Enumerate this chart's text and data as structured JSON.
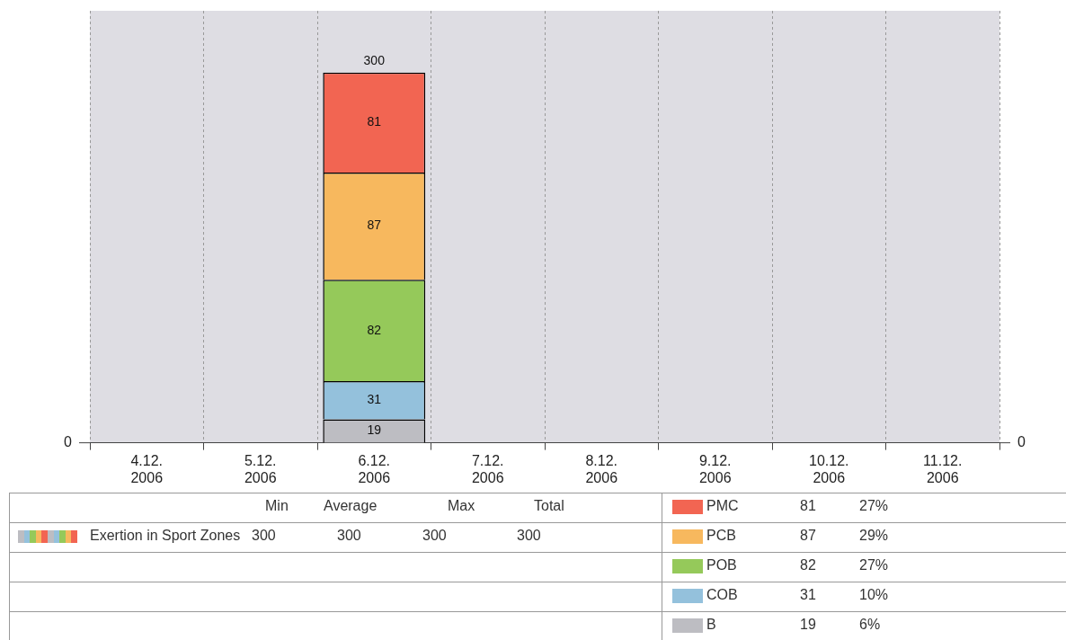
{
  "chart_data": {
    "type": "bar",
    "stacked": true,
    "categories": [
      "4.12. 2006",
      "5.12. 2006",
      "6.12. 2006",
      "7.12. 2006",
      "8.12. 2006",
      "9.12. 2006",
      "10.12. 2006",
      "11.12. 2006"
    ],
    "series": [
      {
        "name": "B",
        "color": "#bdbdc2",
        "values": [
          null,
          null,
          19,
          null,
          null,
          null,
          null,
          null
        ]
      },
      {
        "name": "COB",
        "color": "#94c1dc",
        "values": [
          null,
          null,
          31,
          null,
          null,
          null,
          null,
          null
        ]
      },
      {
        "name": "POB",
        "color": "#95c95a",
        "values": [
          null,
          null,
          82,
          null,
          null,
          null,
          null,
          null
        ]
      },
      {
        "name": "PCB",
        "color": "#f7b85e",
        "values": [
          null,
          null,
          87,
          null,
          null,
          null,
          null,
          null
        ]
      },
      {
        "name": "PMC",
        "color": "#f26552",
        "values": [
          null,
          null,
          81,
          null,
          null,
          null,
          null,
          null
        ]
      }
    ],
    "totals": [
      null,
      null,
      "300",
      null,
      null,
      null,
      null,
      null
    ],
    "data_labels": true,
    "grid": "x",
    "legend": "bottom",
    "annotations": [
      "Min",
      "Average",
      "Max",
      "Total",
      "Exertion in Sport Zones",
      "300",
      "300",
      "300",
      "300",
      "27%",
      "29%",
      "27%",
      "10%",
      "6%",
      "81",
      "87",
      "82",
      "31",
      "19",
      "0",
      "0"
    ]
  }
}
